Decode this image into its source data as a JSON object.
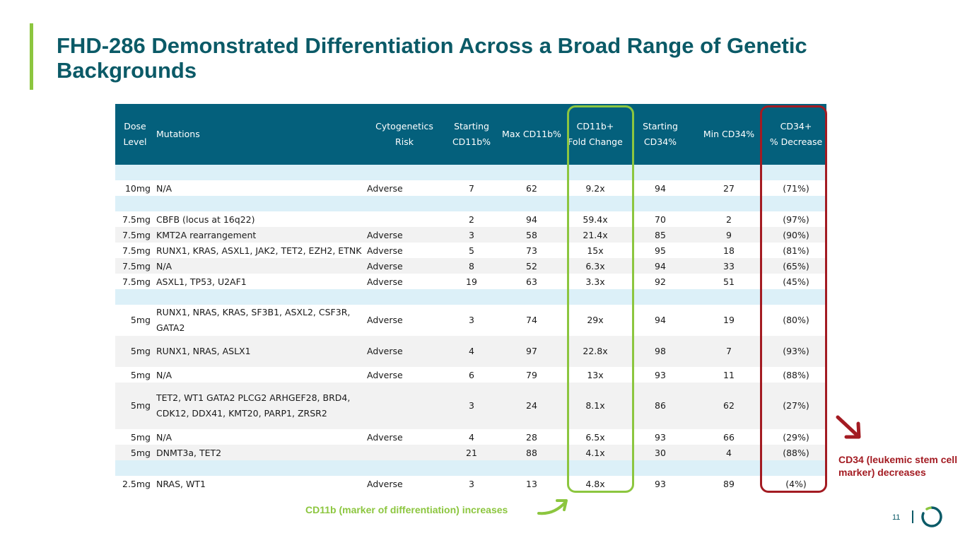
{
  "slide": {
    "title": "FHD-286 Demonstrated Differentiation Across a Broad Range of Genetic Backgrounds",
    "page_number": "11"
  },
  "table": {
    "headers": {
      "dose": [
        "Dose",
        "Level"
      ],
      "mutations": "Mutations",
      "cyto": [
        "Cytogenetics",
        "Risk"
      ],
      "start_cd11b": [
        "Starting",
        "CD11b%"
      ],
      "max_cd11b": "Max CD11b%",
      "cd11b_fold": [
        "CD11b+",
        "Fold Change"
      ],
      "start_cd34": [
        "Starting",
        "CD34%"
      ],
      "min_cd34": "Min CD34%",
      "cd34_decrease": [
        "CD34+",
        "% Decrease"
      ]
    },
    "rows": [
      {
        "kind": "gap",
        "bg": "light"
      },
      {
        "kind": "data",
        "bg": "white",
        "dose": "10mg",
        "mutations": "N/A",
        "cyto": "Adverse",
        "start_cd11b": "7",
        "max_cd11b": "62",
        "fold": "9.2x",
        "start_cd34": "94",
        "min_cd34": "27",
        "decrease": "(71%)"
      },
      {
        "kind": "gap",
        "bg": "light"
      },
      {
        "kind": "data",
        "bg": "white",
        "dose": "7.5mg",
        "mutations": "CBFB (locus at 16q22)",
        "cyto": "",
        "start_cd11b": "2",
        "max_cd11b": "94",
        "fold": "59.4x",
        "start_cd34": "70",
        "min_cd34": "2",
        "decrease": "(97%)"
      },
      {
        "kind": "data",
        "bg": "grey",
        "dose": "7.5mg",
        "mutations": "KMT2A rearrangement",
        "cyto": "Adverse",
        "start_cd11b": "3",
        "max_cd11b": "58",
        "fold": "21.4x",
        "start_cd34": "85",
        "min_cd34": "9",
        "decrease": "(90%)"
      },
      {
        "kind": "data",
        "bg": "white",
        "dose": "7.5mg",
        "mutations": "RUNX1, KRAS, ASXL1, JAK2, TET2, EZH2, ETNK",
        "cyto": "Adverse",
        "start_cd11b": "5",
        "max_cd11b": "73",
        "fold": "15x",
        "start_cd34": "95",
        "min_cd34": "18",
        "decrease": "(81%)"
      },
      {
        "kind": "data",
        "bg": "grey",
        "dose": "7.5mg",
        "mutations": "N/A",
        "cyto": "Adverse",
        "start_cd11b": "8",
        "max_cd11b": "52",
        "fold": "6.3x",
        "start_cd34": "94",
        "min_cd34": "33",
        "decrease": "(65%)"
      },
      {
        "kind": "data",
        "bg": "white",
        "dose": "7.5mg",
        "mutations": "ASXL1, TP53, U2AF1",
        "cyto": "Adverse",
        "start_cd11b": "19",
        "max_cd11b": "63",
        "fold": "3.3x",
        "start_cd34": "92",
        "min_cd34": "51",
        "decrease": "(45%)"
      },
      {
        "kind": "gap",
        "bg": "light"
      },
      {
        "kind": "tall",
        "bg": "white",
        "dose": "5mg",
        "mutations": "RUNX1, NRAS, KRAS, SF3B1, ASXL2, CSF3R, GATA2",
        "cyto": "Adverse",
        "start_cd11b": "3",
        "max_cd11b": "74",
        "fold": "29x",
        "start_cd34": "94",
        "min_cd34": "19",
        "decrease": "(80%)"
      },
      {
        "kind": "tall",
        "bg": "grey",
        "dose": "5mg",
        "mutations": "RUNX1, NRAS, ASLX1",
        "cyto": "Adverse",
        "start_cd11b": "4",
        "max_cd11b": "97",
        "fold": "22.8x",
        "start_cd34": "98",
        "min_cd34": "7",
        "decrease": "(93%)"
      },
      {
        "kind": "data",
        "bg": "white",
        "dose": "5mg",
        "mutations": "N/A",
        "cyto": "Adverse",
        "start_cd11b": "6",
        "max_cd11b": "79",
        "fold": "13x",
        "start_cd34": "93",
        "min_cd34": "11",
        "decrease": "(88%)"
      },
      {
        "kind": "tall3",
        "bg": "grey",
        "dose": "5mg",
        "mutations": "TET2, WT1 GATA2 PLCG2 ARHGEF28, BRD4, CDK12, DDX41, KMT20, PARP1, ZRSR2",
        "cyto": "",
        "start_cd11b": "3",
        "max_cd11b": "24",
        "fold": "8.1x",
        "start_cd34": "86",
        "min_cd34": "62",
        "decrease": "(27%)"
      },
      {
        "kind": "data",
        "bg": "white",
        "dose": "5mg",
        "mutations": "N/A",
        "cyto": "Adverse",
        "start_cd11b": "4",
        "max_cd11b": "28",
        "fold": "6.5x",
        "start_cd34": "93",
        "min_cd34": "66",
        "decrease": "(29%)"
      },
      {
        "kind": "data",
        "bg": "grey",
        "dose": "5mg",
        "mutations": "DNMT3a, TET2",
        "cyto": "",
        "start_cd11b": "21",
        "max_cd11b": "88",
        "fold": "4.1x",
        "start_cd34": "30",
        "min_cd34": "4",
        "decrease": "(88%)"
      },
      {
        "kind": "gap",
        "bg": "light"
      },
      {
        "kind": "data",
        "bg": "white",
        "dose": "2.5mg",
        "mutations": "NRAS, WT1",
        "cyto": "Adverse",
        "start_cd11b": "3",
        "max_cd11b": "13",
        "fold": "4.8x",
        "start_cd34": "93",
        "min_cd34": "89",
        "decrease": "(4%)"
      }
    ]
  },
  "annotations": {
    "cd11b_caption": "CD11b (marker of differentiation) increases",
    "cd34_caption": "CD34 (leukemic stem cell marker) decreases",
    "cd11b_color": "#8cc63f",
    "cd34_color": "#a31b22"
  },
  "colors": {
    "title": "#0b5a67",
    "header_bg": "#04607c",
    "accent": "#8cc63f",
    "row_light": "#dcf0f8",
    "row_grey": "#f2f2f2"
  }
}
